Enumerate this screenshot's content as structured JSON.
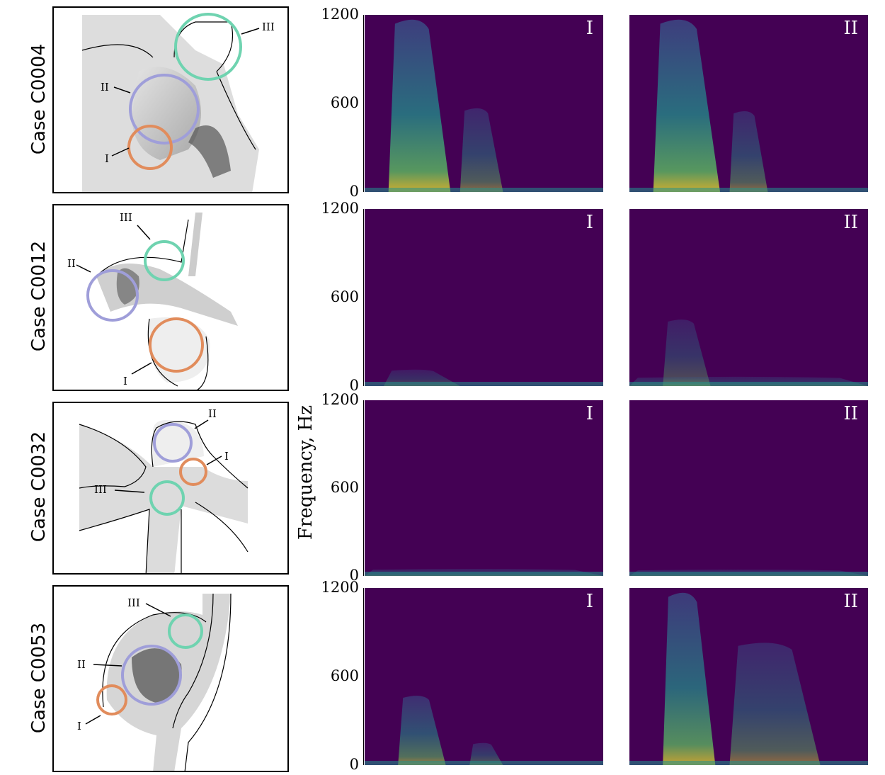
{
  "y_axis_label": "Frequency, Hz",
  "y_ticks": [
    "1200",
    "600",
    "0"
  ],
  "colors": {
    "background": "#440154",
    "low": "#3b528b",
    "mid": "#21918c",
    "high": "#5ec962",
    "peak": "#fde725"
  },
  "cases": [
    {
      "label": "Case C0004",
      "markers": [
        "I",
        "II",
        "III"
      ]
    },
    {
      "label": "Case C0012",
      "markers": [
        "I",
        "II",
        "III"
      ]
    },
    {
      "label": "Case C0032",
      "markers": [
        "I",
        "II",
        "III"
      ]
    },
    {
      "label": "Case C0053",
      "markers": [
        "I",
        "II",
        "III"
      ]
    }
  ],
  "chart_data": {
    "type": "heatmap",
    "ylabel": "Frequency, Hz",
    "ylim": [
      0,
      1200
    ],
    "yticks": [
      0,
      600,
      1200
    ],
    "colormap": "viridis",
    "panels": [
      {
        "case": "Case C0004",
        "tag": "I",
        "bursts": [
          {
            "t0": 0.1,
            "t1": 0.36,
            "fmax": 1200,
            "intensity": 0.75
          },
          {
            "t0": 0.4,
            "t1": 0.58,
            "fmax": 580,
            "intensity": 0.45
          }
        ]
      },
      {
        "case": "Case C0004",
        "tag": "II",
        "bursts": [
          {
            "t0": 0.1,
            "t1": 0.38,
            "fmax": 1200,
            "intensity": 0.75
          },
          {
            "t0": 0.42,
            "t1": 0.58,
            "fmax": 560,
            "intensity": 0.45
          }
        ]
      },
      {
        "case": "Case C0012",
        "tag": "I",
        "bursts": [
          {
            "t0": 0.08,
            "t1": 0.4,
            "fmax": 110,
            "intensity": 0.3
          }
        ]
      },
      {
        "case": "Case C0012",
        "tag": "II",
        "bursts": [
          {
            "t0": 0.14,
            "t1": 0.34,
            "fmax": 460,
            "intensity": 0.35
          },
          {
            "t0": 0.0,
            "t1": 1.0,
            "fmax": 60,
            "intensity": 0.3
          }
        ]
      },
      {
        "case": "Case C0032",
        "tag": "I",
        "bursts": [
          {
            "t0": 0.0,
            "t1": 1.0,
            "fmax": 45,
            "intensity": 0.3
          }
        ]
      },
      {
        "case": "Case C0032",
        "tag": "II",
        "bursts": [
          {
            "t0": 0.0,
            "t1": 1.0,
            "fmax": 40,
            "intensity": 0.28
          }
        ]
      },
      {
        "case": "Case C0053",
        "tag": "I",
        "bursts": [
          {
            "t0": 0.14,
            "t1": 0.34,
            "fmax": 480,
            "intensity": 0.55
          },
          {
            "t0": 0.44,
            "t1": 0.58,
            "fmax": 150,
            "intensity": 0.4
          }
        ]
      },
      {
        "case": "Case C0053",
        "tag": "II",
        "bursts": [
          {
            "t0": 0.14,
            "t1": 0.36,
            "fmax": 1200,
            "intensity": 0.7
          },
          {
            "t0": 0.42,
            "t1": 0.8,
            "fmax": 850,
            "intensity": 0.45
          }
        ]
      }
    ]
  }
}
